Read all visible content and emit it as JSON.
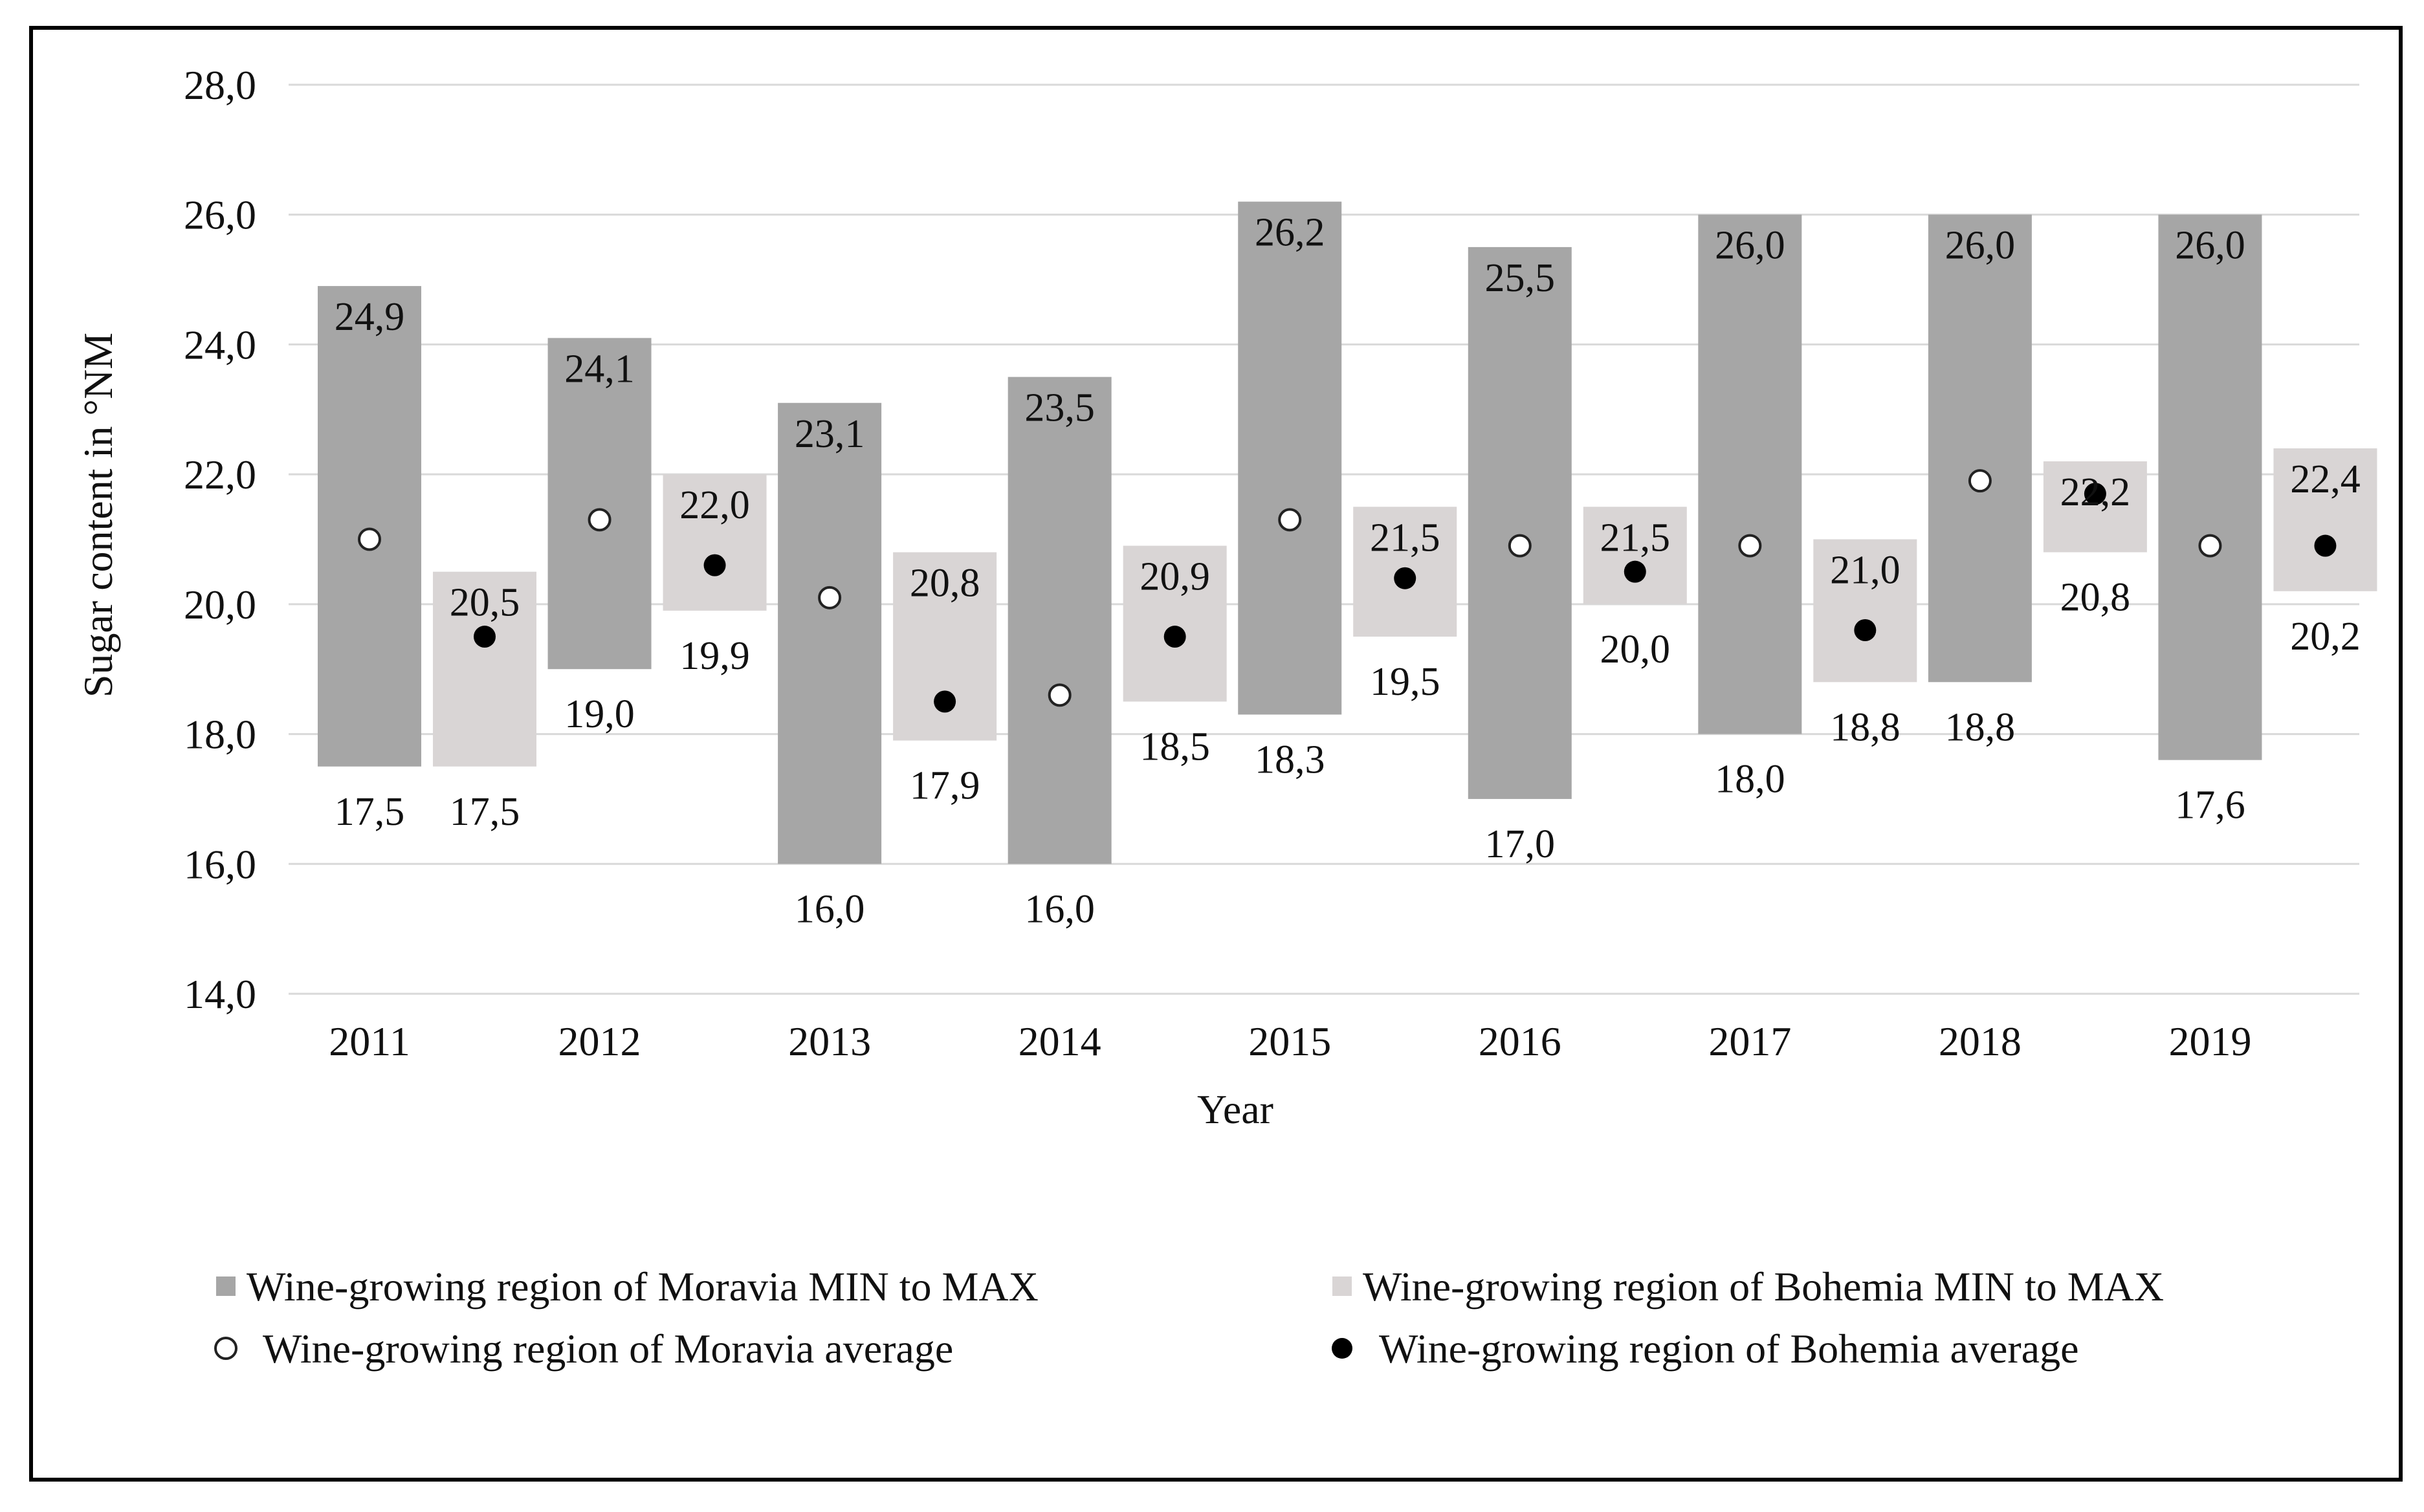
{
  "chart_data": {
    "type": "bar",
    "title": "",
    "xlabel": "Year",
    "ylabel": "Sugar content in °NM",
    "ylim": [
      14,
      28
    ],
    "yticks": [
      "14,0",
      "16,0",
      "18,0",
      "20,0",
      "22,0",
      "24,0",
      "26,0",
      "28,0"
    ],
    "grid": true,
    "categories": [
      "2011",
      "2012",
      "2013",
      "2014",
      "2015",
      "2016",
      "2017",
      "2018",
      "2019"
    ],
    "series": [
      {
        "name": "Wine-growing region of Moravia MIN to MAX",
        "kind": "range",
        "color": "#a6a6a6",
        "min": [
          17.5,
          19.0,
          16.0,
          16.0,
          18.3,
          17.0,
          18.0,
          18.8,
          17.6
        ],
        "max": [
          24.9,
          24.1,
          23.1,
          23.5,
          26.2,
          25.5,
          26.0,
          26.0,
          26.0
        ],
        "min_labels": [
          "17,5",
          "19,0",
          "16,0",
          "16,0",
          "18,3",
          "17,0",
          "18,0",
          "18,8",
          "17,6"
        ],
        "max_labels": [
          "24,9",
          "24,1",
          "23,1",
          "23,5",
          "26,2",
          "25,5",
          "26,0",
          "26,0",
          "26,0"
        ]
      },
      {
        "name": "Wine-growing region of Bohemia MIN to MAX",
        "kind": "range",
        "color": "#d9d5d5",
        "min": [
          17.5,
          19.9,
          17.9,
          18.5,
          19.5,
          20.0,
          18.8,
          20.8,
          20.2
        ],
        "max": [
          20.5,
          22.0,
          20.8,
          20.9,
          21.5,
          21.5,
          21.0,
          22.2,
          22.4
        ],
        "min_labels": [
          "17,5",
          "19,9",
          "17,9",
          "18,5",
          "19,5",
          "20,0",
          "18,8",
          "20,8",
          "20,2"
        ],
        "max_labels": [
          "20,5",
          "22,0",
          "20,8",
          "20,9",
          "21,5",
          "21,5",
          "21,0",
          "22,2",
          "22,4"
        ]
      },
      {
        "name": "Wine-growing region of Moravia average",
        "kind": "point",
        "marker": "open-circle",
        "values": [
          21.0,
          21.3,
          20.1,
          18.6,
          21.3,
          20.9,
          20.9,
          21.9,
          20.9
        ]
      },
      {
        "name": "Wine-growing region of Bohemia average",
        "kind": "point",
        "marker": "filled-circle",
        "values": [
          19.5,
          20.6,
          18.5,
          19.5,
          20.4,
          20.5,
          19.6,
          21.7,
          20.9
        ]
      }
    ],
    "legend": "bottom"
  }
}
